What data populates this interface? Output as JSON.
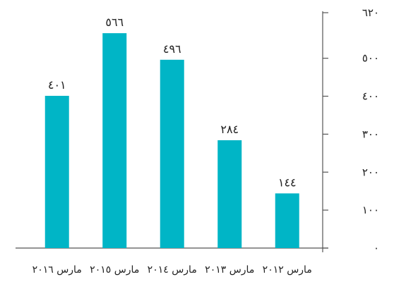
{
  "chart_data": {
    "type": "bar",
    "categories": [
      "مارس ٢٠١٦",
      "مارس ٢٠١٥",
      "مارس ٢٠١٤",
      "مارس ٢٠١٣",
      "مارس ٢٠١٢"
    ],
    "values": [
      401,
      566,
      496,
      284,
      144
    ],
    "value_labels": [
      "٤٠١",
      "٥٦٦",
      "٤٩٦",
      "٢٨٤",
      "١٤٤"
    ],
    "ylim": [
      0,
      620
    ],
    "yticks": [
      0,
      100,
      200,
      300,
      400,
      500,
      620
    ],
    "ytick_labels": [
      "٠",
      "١٠٠",
      "٢٠٠",
      "٣٠٠",
      "٤٠٠",
      "٥٠٠",
      "٦٢٠"
    ],
    "y_axis_side": "right",
    "grid": false,
    "bar_color": "#00b5c6",
    "axis_color": "#555555"
  }
}
